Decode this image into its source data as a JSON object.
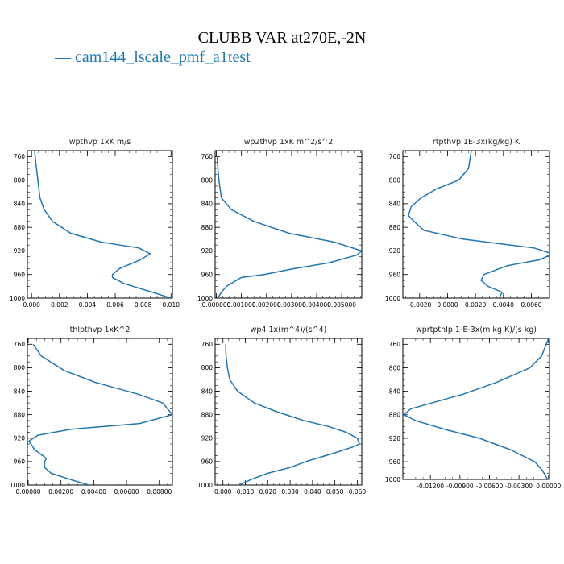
{
  "title": "CLUBB VAR at270E,-2N",
  "legend": {
    "line_glyph": "—",
    "case": "cam144_lscale_pmf_a1test"
  },
  "colors": {
    "series": "#1f77b4",
    "axis": "#000000"
  },
  "chart_data": [
    {
      "type": "line",
      "title": "wpthvp   1xK  m/s",
      "series": [
        {
          "name": "cam144_lscale_pmf_a1test",
          "x": [
            0.00022,
            0.0003,
            0.00045,
            0.0006,
            0.0009,
            0.0015,
            0.0028,
            0.005,
            0.0077,
            0.0085,
            0.0078,
            0.0063,
            0.0058,
            0.0058,
            0.0066,
            0.01
          ],
          "y": [
            750,
            770,
            800,
            830,
            850,
            870,
            890,
            905,
            915,
            925,
            935,
            950,
            960,
            965,
            975,
            1000
          ]
        }
      ],
      "xlim": [
        -0.0003,
        0.0101
      ],
      "ylim": [
        750,
        1000
      ],
      "xticks": [
        0,
        0.002,
        0.004,
        0.006,
        0.008,
        0.01
      ],
      "xticklabels": [
        "0.000",
        "0.002",
        "0.004",
        "0.006",
        "0.008",
        "0.010"
      ],
      "yticks": [
        760,
        800,
        840,
        880,
        920,
        960,
        1000
      ],
      "yticklabels": [
        "760",
        "800",
        "840",
        "880",
        "920",
        "960",
        "1000"
      ]
    },
    {
      "type": "line",
      "title": "wp2thvp   1xK  m^2/s^2",
      "series": [
        {
          "name": "cam144_lscale_pmf_a1test",
          "x": [
            3e-05,
            6e-05,
            0.0001,
            0.0002,
            0.0006,
            0.0015,
            0.0029,
            0.0047,
            0.0058,
            0.0056,
            0.0045,
            0.0031,
            0.0019,
            0.001,
            0.0006,
            0.0004,
            0.0002,
            5e-05
          ],
          "y": [
            760,
            780,
            800,
            830,
            850,
            870,
            890,
            905,
            920,
            927,
            940,
            950,
            960,
            965,
            975,
            980,
            990,
            1000
          ]
        }
      ],
      "xlim": [
        -5e-05,
        0.0058
      ],
      "ylim": [
        750,
        1000
      ],
      "xticks": [
        0,
        0.001,
        0.002,
        0.003,
        0.004,
        0.005
      ],
      "xticklabels": [
        "0.000000",
        "0.001000",
        "0.002000",
        "0.003000",
        "0.004000",
        "0.005000"
      ],
      "yticks": [
        760,
        800,
        840,
        880,
        920,
        960,
        1000
      ],
      "yticklabels": [
        "760",
        "800",
        "840",
        "880",
        "920",
        "960",
        "1000"
      ]
    },
    {
      "type": "line",
      "title": "rtpthvp   1E-3x(kg/kg)  K",
      "series": [
        {
          "name": "cam144_lscale_pmf_a1test",
          "x": [
            0.0017,
            0.0015,
            0.0008,
            -0.0008,
            -0.0019,
            -0.0026,
            -0.0028,
            -0.0024,
            -0.0017,
            0.0011,
            0.0062,
            0.0075,
            0.0066,
            0.0043,
            0.0026,
            0.0024,
            0.0029,
            0.0039,
            0.0037
          ],
          "y": [
            750,
            780,
            800,
            815,
            830,
            845,
            860,
            870,
            885,
            900,
            915,
            925,
            935,
            945,
            960,
            970,
            980,
            990,
            1000
          ]
        }
      ],
      "xlim": [
        -0.0032,
        0.0073
      ],
      "ylim": [
        750,
        1000
      ],
      "xticks": [
        -0.002,
        0,
        0.002,
        0.004,
        0.006
      ],
      "xticklabels": [
        "-0.0020",
        "0.0000",
        "0.0020",
        "0.0040",
        "0.0060"
      ],
      "yticks": [
        760,
        800,
        840,
        880,
        920,
        960,
        1000
      ],
      "yticklabels": [
        "760",
        "800",
        "840",
        "880",
        "920",
        "960",
        "1000"
      ]
    },
    {
      "type": "line",
      "title": "thlpthvp   1xK^2",
      "series": [
        {
          "name": "cam144_lscale_pmf_a1test",
          "x": [
            0.0003,
            0.0008,
            0.0022,
            0.0041,
            0.0067,
            0.0082,
            0.0088,
            0.0068,
            0.0026,
            0.0006,
            5e-05,
            0.0004,
            0.0009,
            0.0011,
            0.001,
            0.001,
            0.0014,
            0.0025,
            0.0037
          ],
          "y": [
            760,
            780,
            805,
            825,
            845,
            860,
            880,
            895,
            905,
            915,
            925,
            940,
            950,
            955,
            960,
            970,
            980,
            990,
            1000
          ]
        }
      ],
      "xlim": [
        -5e-05,
        0.0088
      ],
      "ylim": [
        750,
        1000
      ],
      "xticks": [
        0,
        0.002,
        0.004,
        0.006,
        0.008
      ],
      "xticklabels": [
        "0.00000",
        "0.00200",
        "0.00400",
        "0.00600",
        "0.00800"
      ],
      "yticks": [
        760,
        800,
        840,
        880,
        920,
        960,
        1000
      ],
      "yticklabels": [
        "760",
        "800",
        "840",
        "880",
        "920",
        "960",
        "1000"
      ]
    },
    {
      "type": "line",
      "title": "wp4   1x(m^4)/(s^4)",
      "series": [
        {
          "name": "cam144_lscale_pmf_a1test",
          "x": [
            0.0012,
            0.0014,
            0.002,
            0.003,
            0.0065,
            0.014,
            0.024,
            0.036,
            0.047,
            0.055,
            0.06,
            0.061,
            0.058,
            0.05,
            0.037,
            0.03,
            0.02,
            0.013,
            0.007
          ],
          "y": [
            760,
            780,
            800,
            820,
            840,
            860,
            875,
            890,
            900,
            910,
            920,
            930,
            935,
            945,
            960,
            970,
            980,
            990,
            1000
          ]
        }
      ],
      "xlim": [
        -0.0035,
        0.062
      ],
      "ylim": [
        750,
        1000
      ],
      "xticks": [
        0,
        0.01,
        0.02,
        0.03,
        0.04,
        0.05,
        0.06
      ],
      "xticklabels": [
        "0.000",
        "0.010",
        "0.020",
        "0.030",
        "0.040",
        "0.050",
        "0.060"
      ],
      "yticks": [
        760,
        800,
        840,
        880,
        920,
        960,
        1000
      ],
      "yticklabels": [
        "760",
        "800",
        "840",
        "880",
        "920",
        "960",
        "1000"
      ]
    },
    {
      "type": "line",
      "title": "wprtpthlp   1-E-3x(m  kg  K)/(s  kg)",
      "series": [
        {
          "name": "cam144_lscale_pmf_a1test",
          "x": [
            0,
            -0.0007,
            -0.0019,
            -0.0053,
            -0.0087,
            -0.0119,
            -0.014,
            -0.0147,
            -0.0135,
            -0.0105,
            -0.007,
            -0.0038,
            -0.0014,
            -0.0006,
            -0.0001
          ],
          "y": [
            750,
            780,
            800,
            825,
            845,
            860,
            870,
            880,
            890,
            905,
            920,
            940,
            960,
            975,
            990
          ]
        }
      ],
      "xlim": [
        -0.0148,
        0.0001
      ],
      "ylim": [
        750,
        990
      ],
      "xticks": [
        -0.012,
        -0.009,
        -0.006,
        -0.003,
        0
      ],
      "xticklabels": [
        "-0.01200",
        "-0.00900",
        "-0.00600",
        "-0.00300",
        "0.00000"
      ],
      "yticks": [
        760,
        800,
        840,
        880,
        920,
        960,
        1000
      ],
      "yticklabels": [
        "760",
        "800",
        "840",
        "880",
        "920",
        "960",
        "1000"
      ]
    }
  ]
}
